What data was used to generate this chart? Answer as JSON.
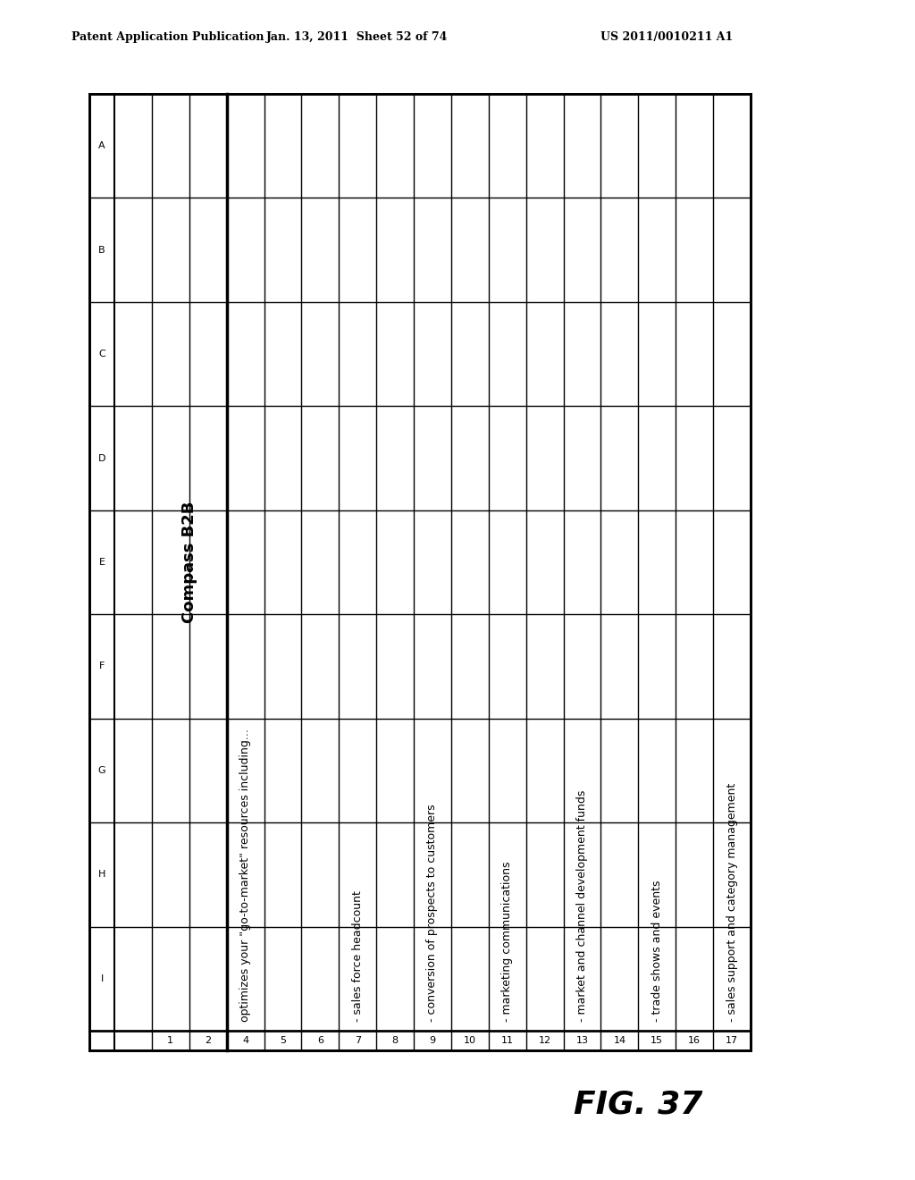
{
  "header_left": "Patent Application Publication",
  "header_mid": "Jan. 13, 2011  Sheet 52 of 74",
  "header_right": "US 2011/0010211 A1",
  "fig_label": "FIG. 37",
  "col_headers": [
    "A",
    "B",
    "C",
    "D",
    "E",
    "F",
    "G",
    "H",
    "I"
  ],
  "row_numbers": [
    "",
    "1",
    "2",
    "4",
    "5",
    "6",
    "7",
    "8",
    "9",
    "10",
    "11",
    "12",
    "13",
    "14",
    "15",
    "16",
    "17"
  ],
  "compass_b2b_label": "Compass B2B",
  "content_rows": {
    "4": "optimizes your \"go-to-market\" resources including...",
    "7": "- sales force headcount",
    "9": "- conversion of prospects to customers",
    "11": "- marketing communications",
    "13": "- market and channel development funds",
    "15": "- trade shows and events",
    "17": "- sales support and category management"
  },
  "background_color": "#ffffff",
  "border_color": "#000000",
  "header_fontsize": 9,
  "cell_fontsize": 8,
  "content_fontsize": 9,
  "compass_fontsize": 13,
  "fig_label_fontsize": 26
}
